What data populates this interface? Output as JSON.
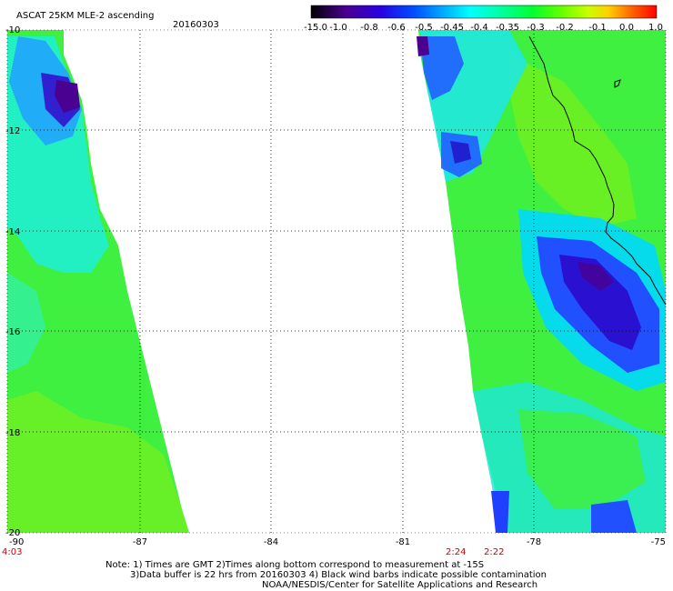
{
  "header": {
    "title": "ASCAT 25KM MLE-2 ascending",
    "date": "20160303"
  },
  "colorbar": {
    "labels": [
      "-15.0",
      "-1.0",
      "-0.8",
      "-0.6",
      "-0.5",
      "-0.45",
      "-0.4",
      "-0.35",
      "-0.3",
      "-0.2",
      "-0.1",
      "0.0",
      "1.0"
    ],
    "colors": [
      "#000000",
      "#5a00a0",
      "#2800e0",
      "#0050ff",
      "#00a8ff",
      "#00ffff",
      "#00ffa0",
      "#00ff30",
      "#60ff00",
      "#c8ff00",
      "#ffd000",
      "#ff6000",
      "#ff0000"
    ]
  },
  "axes": {
    "lon_labels": [
      "-90",
      "-87",
      "-84",
      "-81",
      "-78",
      "-75"
    ],
    "lat_labels": [
      "-10",
      "-12",
      "-14",
      "-16",
      "-18",
      "-20"
    ]
  },
  "swath_times": [
    "4:03",
    "2:24",
    "2:22"
  ],
  "notes": {
    "line1": "Note: 1) Times are GMT 2)Times along bottom correspond to measurement at -15S",
    "line2": "3)Data buffer is 22 hrs from 20160303 4) Black wind barbs indicate possible contamination",
    "line3": "NOAA/NESDIS/Center for Satellite Applications and Research"
  },
  "map_colors": {
    "green": "#30f030",
    "cyan": "#00f0f0",
    "blue": "#2040ff",
    "dark_blue": "#3010c0",
    "purple": "#4a0090"
  }
}
